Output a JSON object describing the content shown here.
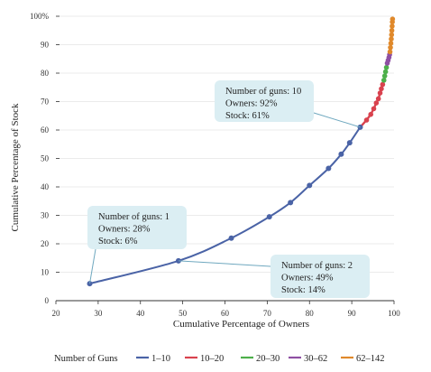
{
  "chart_data": {
    "type": "line",
    "title": "",
    "xlabel": "Cumulative Percentage of Owners",
    "ylabel": "Cumulative Percentage of Stock",
    "xlim": [
      20,
      100
    ],
    "ylim": [
      0,
      100
    ],
    "x_ticks": [
      "20",
      "30",
      "40",
      "50",
      "60",
      "70",
      "80",
      "90",
      "100"
    ],
    "y_ticks": [
      "0",
      "10",
      "20",
      "30",
      "40",
      "50",
      "60",
      "70",
      "80",
      "90",
      "100%"
    ],
    "legend_title": "Number of Guns",
    "legend_position": "bottom",
    "series": [
      {
        "name": "1–10",
        "color": "#4a63a6",
        "points": [
          [
            28,
            6
          ],
          [
            49,
            14
          ],
          [
            61.5,
            22
          ],
          [
            70.5,
            29.5
          ],
          [
            75.5,
            34.5
          ],
          [
            80,
            40.5
          ],
          [
            84.5,
            46.5
          ],
          [
            87.5,
            51.5
          ],
          [
            89.5,
            55.5
          ],
          [
            92,
            61
          ]
        ]
      },
      {
        "name": "10–20",
        "color": "#d9424e",
        "points": [
          [
            93.5,
            63.5
          ],
          [
            94.5,
            65.5
          ],
          [
            95.2,
            67.5
          ],
          [
            95.8,
            69.5
          ],
          [
            96.3,
            71
          ],
          [
            96.7,
            73
          ],
          [
            97,
            74.5
          ],
          [
            97.3,
            76
          ]
        ]
      },
      {
        "name": "20–30",
        "color": "#4daf4a",
        "points": [
          [
            97.6,
            77.5
          ],
          [
            97.8,
            79
          ],
          [
            98,
            80.5
          ],
          [
            98.2,
            82
          ]
        ]
      },
      {
        "name": "30–62",
        "color": "#8e4fa3",
        "points": [
          [
            98.4,
            83.5
          ],
          [
            98.6,
            84.5
          ],
          [
            98.8,
            85.5
          ],
          [
            98.95,
            86.5
          ]
        ]
      },
      {
        "name": "62–142",
        "color": "#e0892b",
        "points": [
          [
            99.05,
            87.5
          ],
          [
            99.15,
            89
          ],
          [
            99.25,
            90.5
          ],
          [
            99.35,
            92
          ],
          [
            99.42,
            93.5
          ],
          [
            99.48,
            95
          ],
          [
            99.55,
            96.5
          ],
          [
            99.6,
            98
          ],
          [
            99.65,
            99
          ]
        ]
      }
    ],
    "annotations": [
      {
        "lines": [
          "Number of guns: 1",
          "Owners: 28%",
          "Stock: 6%"
        ]
      },
      {
        "lines": [
          "Number of guns: 2",
          "Owners: 49%",
          "Stock: 14%"
        ]
      },
      {
        "lines": [
          "Number of guns: 10",
          "Owners: 92%",
          "Stock: 61%"
        ]
      }
    ]
  }
}
